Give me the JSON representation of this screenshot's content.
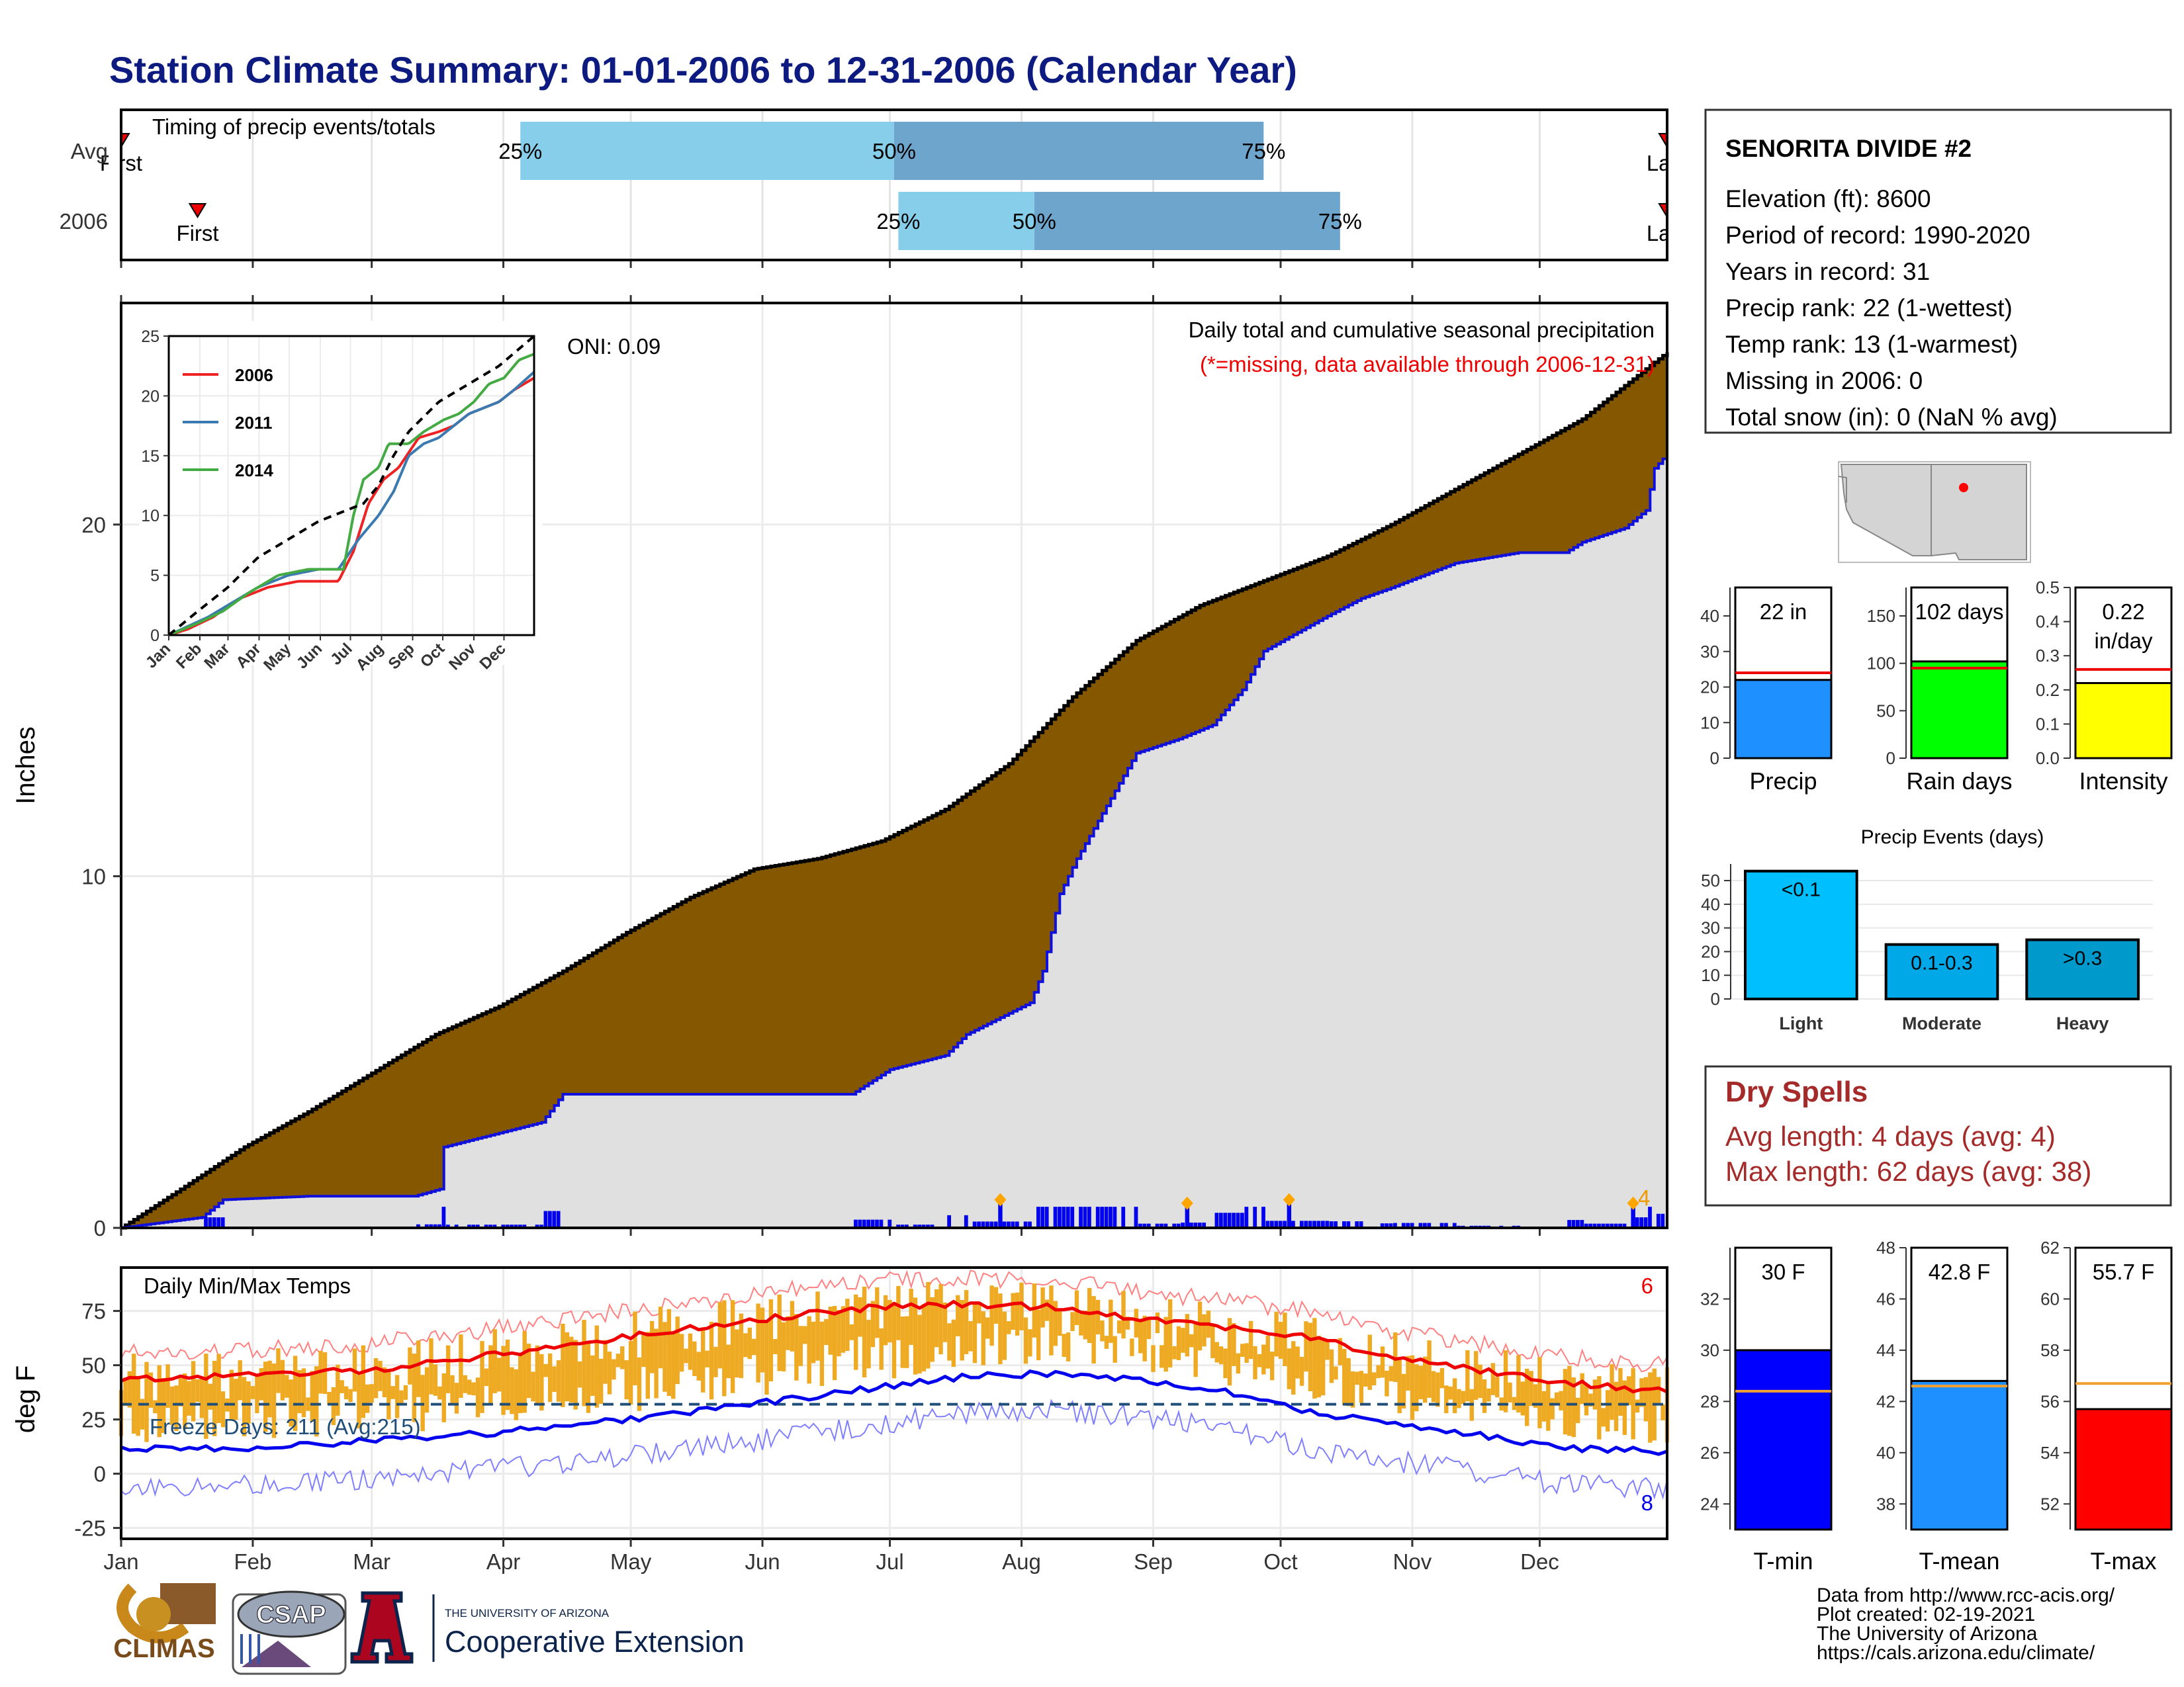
{
  "title": "Station Climate Summary: 01-01-2006 to 12-31-2006 (Calendar Year)",
  "colors": {
    "title": "#0d1a80",
    "brown": "#855800",
    "light_bar": "#87ceeb",
    "dark_bar": "#6ea5cc",
    "gold": "#eeaa22",
    "dry_red": "#a52a2a",
    "freeze_blue": "#1f4e79"
  },
  "timing_panel": {
    "label": "Timing of precip events/totals",
    "row_labels": [
      "Avg",
      "2006"
    ],
    "first_label": "First",
    "last_label": "Last",
    "pct_labels": [
      "25%",
      "50%",
      "75%"
    ]
  },
  "station_info": {
    "name": "SENORITA DIVIDE #2",
    "lines": [
      "Elevation (ft): 8600",
      "Period of record: 1990-2020",
      "Years in record: 31",
      "Precip rank: 22 (1-wettest)",
      "Temp rank: 13 (1-warmest)",
      "Missing in 2006: 0",
      "Total snow (in): 0 (NaN % avg)"
    ]
  },
  "precip_panel": {
    "ylabel": "Inches",
    "oni": "ONI: 0.09",
    "subtitle": "Daily total and cumulative seasonal precipitation",
    "missing_note": "(*=missing, data available through 2006-12-31)",
    "extreme_count": "4"
  },
  "months": [
    "Jan",
    "Feb",
    "Mar",
    "Apr",
    "May",
    "Jun",
    "Jul",
    "Aug",
    "Sep",
    "Oct",
    "Nov",
    "Dec"
  ],
  "temp_panel": {
    "ylabel": "deg F",
    "label": "Daily Min/Max Temps",
    "freeze": "Freeze Days: 211 (Avg:215)",
    "high_count": "6",
    "low_count": "8"
  },
  "dry_spells": {
    "title": "Dry Spells",
    "avg": "Avg length: 4 days (avg: 4)",
    "max": "Max length: 62 days (avg: 38)"
  },
  "precip_events": {
    "title": "Precip Events (days)"
  },
  "credits": [
    "Data from http://www.rcc-acis.org/",
    "Plot created: 02-19-2021",
    "The University of Arizona",
    "https://cals.arizona.edu/climate/"
  ],
  "logos": {
    "climas": "CLIMAS",
    "csap": "CSAP",
    "ua_small": "THE UNIVERSITY OF ARIZONA",
    "coop": "Cooperative Extension"
  },
  "chart_data": [
    {
      "type": "bar",
      "id": "timing",
      "title": "Timing of precip events/totals",
      "categories": [
        "Avg",
        "2006"
      ],
      "q25_date": [
        "2006-04-05",
        "2006-07-03"
      ],
      "q50_date": [
        "2006-07-02",
        "2006-08-04"
      ],
      "q75_date": [
        "2006-09-27",
        "2006-10-15"
      ],
      "first_date": [
        "2006-01-01",
        "2006-01-19"
      ],
      "last_date": [
        "2006-12-31",
        "2006-12-31"
      ]
    },
    {
      "type": "area",
      "id": "cumulative_precip",
      "ylabel": "Inches",
      "ylim": [
        0,
        26.3
      ],
      "yticks": [
        0,
        10,
        20
      ],
      "x_unit": "day of year 2006",
      "avg_cumulative": {
        "x": [
          1,
          15,
          30,
          45,
          60,
          75,
          90,
          105,
          120,
          135,
          150,
          165,
          180,
          195,
          210,
          225,
          240,
          255,
          270,
          285,
          300,
          315,
          330,
          345,
          365
        ],
        "y": [
          0,
          1.1,
          2.3,
          3.3,
          4.4,
          5.5,
          6.3,
          7.3,
          8.4,
          9.4,
          10.2,
          10.5,
          11.0,
          11.9,
          13.2,
          15.1,
          16.7,
          17.7,
          18.4,
          19.1,
          20.0,
          21.0,
          22.0,
          23.0,
          24.9
        ]
      },
      "obs_cumulative": {
        "x": [
          1,
          20,
          25,
          45,
          70,
          76,
          77,
          100,
          105,
          173,
          182,
          195,
          200,
          215,
          218,
          222,
          226,
          240,
          250,
          258,
          265,
          270,
          285,
          293,
          300,
          315,
          330,
          341,
          345,
          355,
          360,
          362,
          365
        ],
        "y": [
          0,
          0.3,
          0.8,
          0.9,
          0.9,
          1.1,
          2.3,
          3.0,
          3.8,
          3.8,
          4.5,
          4.9,
          5.5,
          6.4,
          7.3,
          9.5,
          10.5,
          13.5,
          13.9,
          14.3,
          15.3,
          16.4,
          17.4,
          17.9,
          18.2,
          18.9,
          19.2,
          19.2,
          19.5,
          19.9,
          20.4,
          21.6,
          22.0
        ]
      },
      "daily_max_markers": [
        {
          "x": 208,
          "y": 0.8
        },
        {
          "x": 252,
          "y": 0.7
        },
        {
          "x": 276,
          "y": 0.8
        },
        {
          "x": 357,
          "y": 0.7
        }
      ]
    },
    {
      "type": "line",
      "id": "inset_cumulative",
      "xlabel": "",
      "ylim": [
        0,
        25
      ],
      "yticks": [
        0,
        5,
        10,
        15,
        20,
        25
      ],
      "series": [
        {
          "name": "2006",
          "color": "#ee2222",
          "x": [
            1,
            20,
            45,
            70,
            100,
            130,
            170,
            185,
            200,
            215,
            230,
            250,
            270,
            285,
            300,
            315,
            330,
            345,
            365
          ],
          "y": [
            0,
            0.5,
            1.5,
            3,
            4,
            4.5,
            4.5,
            7,
            11,
            13,
            14,
            16.5,
            17,
            17.5,
            18.5,
            19,
            19.5,
            20.5,
            21.5
          ]
        },
        {
          "name": "2011",
          "color": "#3a7ab0",
          "x": [
            1,
            40,
            60,
            90,
            120,
            150,
            170,
            190,
            200,
            210,
            225,
            240,
            255,
            270,
            285,
            300,
            315,
            330,
            345,
            365
          ],
          "y": [
            0,
            1.5,
            2.5,
            4,
            5,
            5.5,
            5.5,
            8,
            9,
            10,
            12,
            15,
            16,
            16.5,
            17.5,
            18.5,
            19,
            19.5,
            20.5,
            22
          ]
        },
        {
          "name": "2014",
          "color": "#44aa44",
          "x": [
            1,
            30,
            55,
            80,
            110,
            140,
            175,
            185,
            195,
            210,
            220,
            240,
            255,
            275,
            290,
            305,
            320,
            335,
            350,
            365
          ],
          "y": [
            0,
            1,
            2,
            3.5,
            5,
            5.5,
            5.5,
            10,
            13,
            14,
            16,
            16,
            17,
            18,
            18.5,
            19.5,
            21,
            21.5,
            23,
            23.5
          ]
        },
        {
          "name": "",
          "color": "#000000",
          "dash": true,
          "x": [
            1,
            30,
            60,
            90,
            120,
            150,
            180,
            195,
            210,
            225,
            240,
            270,
            300,
            330,
            365
          ],
          "y": [
            0,
            2,
            4,
            6.5,
            8,
            9.5,
            10.5,
            11,
            12.5,
            15,
            17,
            19.5,
            21,
            22.5,
            25
          ]
        }
      ]
    },
    {
      "type": "bar",
      "id": "gauges_precip",
      "categories": [
        "Precip",
        "Rain days",
        "Intensity"
      ],
      "values": [
        22,
        102,
        0.22
      ],
      "averages": [
        24,
        95,
        0.26
      ],
      "value_labels": [
        "22 in",
        "102 days",
        "0.22 in/day"
      ],
      "ylims": [
        [
          0,
          48
        ],
        [
          0,
          180
        ],
        [
          0,
          0.5
        ]
      ],
      "yticks": [
        [
          0,
          10,
          20,
          30,
          40
        ],
        [
          0,
          50,
          100,
          150
        ],
        [
          0.0,
          0.1,
          0.2,
          0.3,
          0.4,
          0.5
        ]
      ],
      "colors": [
        "#1e90ff",
        "#00ff00",
        "#ffff00"
      ]
    },
    {
      "type": "bar",
      "id": "precip_events",
      "title": "Precip Events (days)",
      "categories": [
        "Light",
        "Moderate",
        "Heavy"
      ],
      "bar_labels": [
        "<0.1",
        "0.1-0.3",
        ">0.3"
      ],
      "values": [
        54,
        23,
        25
      ],
      "ylim": [
        0,
        57
      ],
      "yticks": [
        0,
        10,
        20,
        30,
        40,
        50
      ],
      "colors": [
        "#00bfff",
        "#00a8e8",
        "#0099cc"
      ]
    },
    {
      "type": "line",
      "id": "daily_temps",
      "ylabel": "deg F",
      "ylim": [
        -30,
        95
      ],
      "yticks": [
        -25,
        0,
        25,
        50,
        75
      ],
      "x_unit": "day of year 2006",
      "avg_max": {
        "x": [
          1,
          30,
          60,
          90,
          120,
          150,
          180,
          200,
          220,
          240,
          260,
          280,
          300,
          320,
          340,
          365
        ],
        "y": [
          44,
          45,
          48,
          55,
          63,
          71,
          77,
          78,
          77,
          72,
          68,
          63,
          54,
          48,
          42,
          38
        ]
      },
      "avg_min": {
        "x": [
          1,
          30,
          60,
          90,
          120,
          150,
          180,
          200,
          220,
          240,
          260,
          280,
          300,
          320,
          340,
          365
        ],
        "y": [
          11,
          12,
          15,
          19,
          25,
          32,
          40,
          45,
          46,
          43,
          38,
          29,
          23,
          18,
          12,
          10
        ]
      },
      "freeze_line": 32
    },
    {
      "type": "bar",
      "id": "gauges_temp",
      "categories": [
        "T-min",
        "T-mean",
        "T-max"
      ],
      "values": [
        30,
        42.8,
        55.7
      ],
      "averages": [
        28.4,
        42.6,
        56.7
      ],
      "value_labels": [
        "30 F",
        "42.8 F",
        "55.7 F"
      ],
      "ylims": [
        [
          23,
          34
        ],
        [
          37,
          48
        ],
        [
          51,
          62
        ]
      ],
      "yticks": [
        [
          24,
          26,
          28,
          30,
          32
        ],
        [
          38,
          40,
          42,
          44,
          46,
          48
        ],
        [
          52,
          54,
          56,
          58,
          60,
          62
        ]
      ],
      "colors": [
        "#0000ff",
        "#1e90ff",
        "#ff0000"
      ]
    }
  ]
}
